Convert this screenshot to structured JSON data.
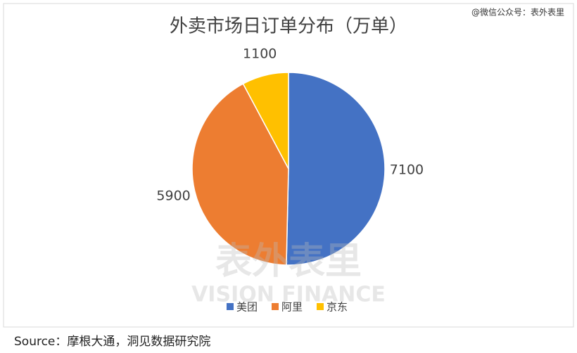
{
  "chart_data": {
    "type": "pie",
    "title": "外卖市场日订单分布（万单）",
    "categories": [
      "美团",
      "阿里",
      "京东"
    ],
    "values": [
      7100,
      5900,
      1100
    ],
    "colors": [
      "#4472c4",
      "#ed7d31",
      "#ffc000"
    ],
    "legend": "bottom"
  },
  "watermark": "@微信公众号：表外表里",
  "background_watermark": {
    "title": "表外表里",
    "subtitle": "VISION FINANCE"
  },
  "source": "Source：摩根大通，洞见数据研究院"
}
